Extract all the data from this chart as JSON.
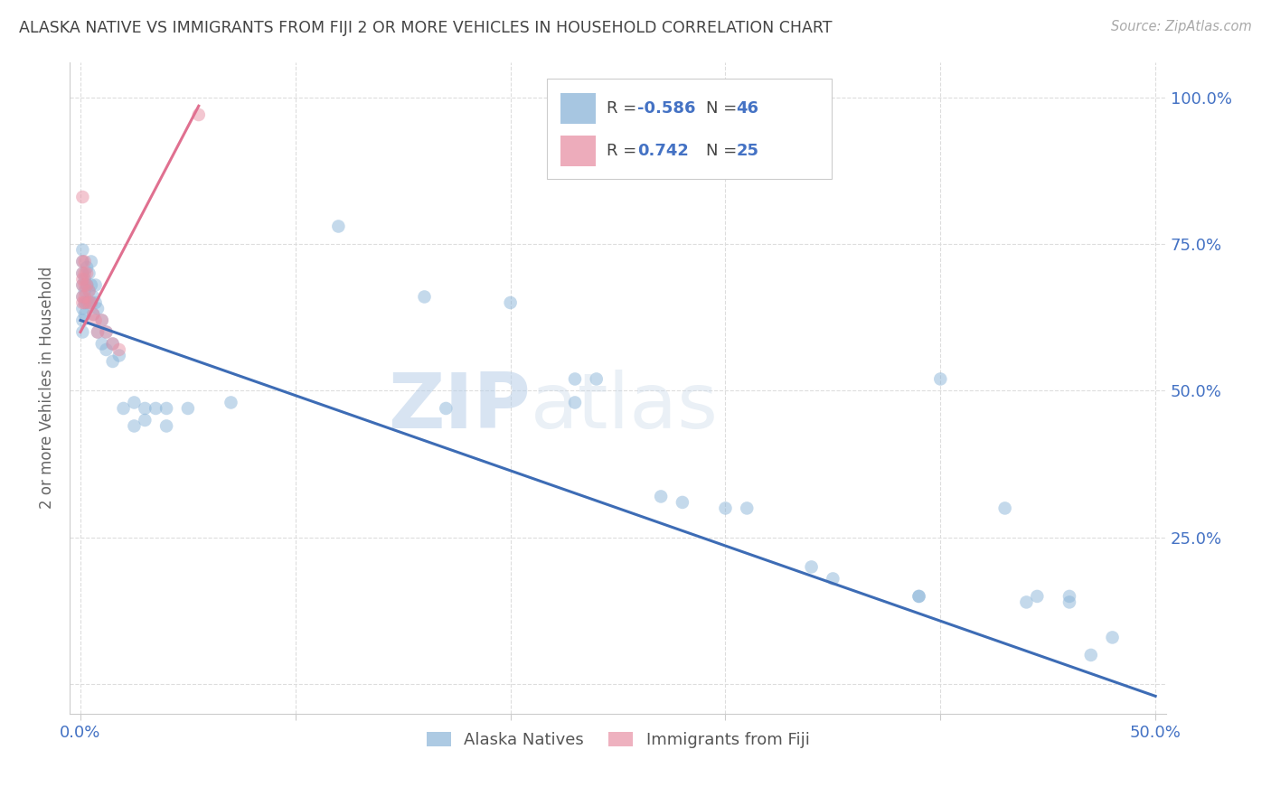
{
  "title": "ALASKA NATIVE VS IMMIGRANTS FROM FIJI 2 OR MORE VEHICLES IN HOUSEHOLD CORRELATION CHART",
  "source": "Source: ZipAtlas.com",
  "ylabel": "2 or more Vehicles in Household",
  "legend_labels": [
    "Alaska Natives",
    "Immigrants from Fiji"
  ],
  "blue_scatter": [
    [
      0.001,
      0.68
    ],
    [
      0.001,
      0.7
    ],
    [
      0.001,
      0.72
    ],
    [
      0.001,
      0.66
    ],
    [
      0.001,
      0.64
    ],
    [
      0.001,
      0.62
    ],
    [
      0.001,
      0.6
    ],
    [
      0.001,
      0.74
    ],
    [
      0.002,
      0.69
    ],
    [
      0.002,
      0.67
    ],
    [
      0.002,
      0.65
    ],
    [
      0.002,
      0.63
    ],
    [
      0.003,
      0.71
    ],
    [
      0.003,
      0.68
    ],
    [
      0.003,
      0.65
    ],
    [
      0.004,
      0.7
    ],
    [
      0.004,
      0.67
    ],
    [
      0.005,
      0.72
    ],
    [
      0.005,
      0.68
    ],
    [
      0.005,
      0.65
    ],
    [
      0.006,
      0.66
    ],
    [
      0.006,
      0.63
    ],
    [
      0.007,
      0.68
    ],
    [
      0.007,
      0.65
    ],
    [
      0.008,
      0.64
    ],
    [
      0.008,
      0.6
    ],
    [
      0.01,
      0.62
    ],
    [
      0.01,
      0.58
    ],
    [
      0.012,
      0.6
    ],
    [
      0.012,
      0.57
    ],
    [
      0.015,
      0.58
    ],
    [
      0.015,
      0.55
    ],
    [
      0.018,
      0.56
    ],
    [
      0.02,
      0.47
    ],
    [
      0.025,
      0.48
    ],
    [
      0.025,
      0.44
    ],
    [
      0.03,
      0.47
    ],
    [
      0.03,
      0.45
    ],
    [
      0.035,
      0.47
    ],
    [
      0.04,
      0.47
    ],
    [
      0.04,
      0.44
    ],
    [
      0.05,
      0.47
    ],
    [
      0.07,
      0.48
    ],
    [
      0.12,
      0.78
    ],
    [
      0.16,
      0.66
    ],
    [
      0.17,
      0.47
    ],
    [
      0.2,
      0.65
    ],
    [
      0.23,
      0.52
    ],
    [
      0.23,
      0.48
    ],
    [
      0.24,
      0.52
    ],
    [
      0.27,
      0.32
    ],
    [
      0.28,
      0.31
    ],
    [
      0.3,
      0.3
    ],
    [
      0.31,
      0.3
    ],
    [
      0.34,
      0.2
    ],
    [
      0.35,
      0.18
    ],
    [
      0.39,
      0.15
    ],
    [
      0.39,
      0.15
    ],
    [
      0.4,
      0.52
    ],
    [
      0.43,
      0.3
    ],
    [
      0.44,
      0.14
    ],
    [
      0.445,
      0.15
    ],
    [
      0.46,
      0.15
    ],
    [
      0.46,
      0.14
    ],
    [
      0.47,
      0.05
    ],
    [
      0.48,
      0.08
    ]
  ],
  "pink_scatter": [
    [
      0.001,
      0.83
    ],
    [
      0.001,
      0.72
    ],
    [
      0.001,
      0.7
    ],
    [
      0.001,
      0.69
    ],
    [
      0.001,
      0.68
    ],
    [
      0.001,
      0.66
    ],
    [
      0.001,
      0.65
    ],
    [
      0.002,
      0.72
    ],
    [
      0.002,
      0.7
    ],
    [
      0.002,
      0.68
    ],
    [
      0.002,
      0.66
    ],
    [
      0.002,
      0.65
    ],
    [
      0.003,
      0.7
    ],
    [
      0.003,
      0.68
    ],
    [
      0.004,
      0.67
    ],
    [
      0.004,
      0.65
    ],
    [
      0.005,
      0.65
    ],
    [
      0.006,
      0.63
    ],
    [
      0.007,
      0.62
    ],
    [
      0.008,
      0.6
    ],
    [
      0.01,
      0.62
    ],
    [
      0.012,
      0.6
    ],
    [
      0.015,
      0.58
    ],
    [
      0.018,
      0.57
    ],
    [
      0.055,
      0.97
    ]
  ],
  "blue_line_x": [
    0.0,
    0.5
  ],
  "blue_line_y": [
    0.62,
    -0.02
  ],
  "pink_line_x": [
    0.0,
    0.055
  ],
  "pink_line_y": [
    0.6,
    0.985
  ],
  "scatter_alpha": 0.5,
  "scatter_size": 110,
  "blue_color": "#8ab4d8",
  "pink_color": "#e890a5",
  "blue_line_color": "#3d6cb5",
  "pink_line_color": "#e07090",
  "watermark_zip": "ZIP",
  "watermark_atlas": "atlas",
  "background_color": "#ffffff",
  "grid_color": "#dddddd",
  "title_color": "#444444",
  "axis_label_color": "#4472c4",
  "source_color": "#aaaaaa",
  "ytick_positions": [
    0.0,
    0.25,
    0.5,
    0.75,
    1.0
  ],
  "ytick_labels": [
    "",
    "25.0%",
    "50.0%",
    "75.0%",
    "100.0%"
  ],
  "xtick_positions": [
    0.0,
    0.1,
    0.2,
    0.3,
    0.4,
    0.5
  ],
  "xtick_labels": [
    "0.0%",
    "",
    "",
    "",
    "",
    "50.0%"
  ]
}
